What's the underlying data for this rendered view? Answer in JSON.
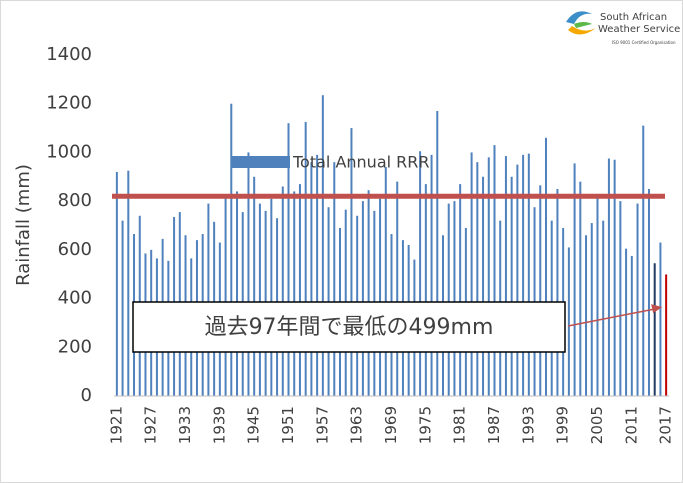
{
  "logo": {
    "line1": "South African",
    "line2": "Weather Service",
    "line3": "ISO 9001 Certified Organisation"
  },
  "chart_data": {
    "type": "bar",
    "y_label": "Rainfall (mm)",
    "categories": [
      "1921",
      null,
      null,
      null,
      null,
      null,
      "1927",
      null,
      null,
      null,
      null,
      null,
      "1933",
      null,
      null,
      null,
      null,
      null,
      "1939",
      null,
      null,
      null,
      null,
      null,
      "1945",
      null,
      null,
      null,
      null,
      null,
      "1951",
      null,
      null,
      null,
      null,
      null,
      "1957",
      null,
      null,
      null,
      null,
      null,
      "1963",
      null,
      null,
      null,
      null,
      null,
      "1969",
      null,
      null,
      null,
      null,
      null,
      "1975",
      null,
      null,
      null,
      null,
      null,
      "1981",
      null,
      null,
      null,
      null,
      null,
      "1987",
      null,
      null,
      null,
      null,
      null,
      "1993",
      null,
      null,
      null,
      null,
      null,
      "1999",
      null,
      null,
      null,
      null,
      null,
      "2005",
      null,
      null,
      null,
      null,
      null,
      "2011",
      null,
      null,
      null,
      null,
      null,
      "2017"
    ],
    "series": [
      {
        "name": "Total Annual RRR",
        "color": "#4f81bd",
        "values": [
          920,
          720,
          925,
          665,
          740,
          585,
          600,
          565,
          645,
          555,
          735,
          755,
          660,
          565,
          640,
          665,
          790,
          715,
          630,
          820,
          1200,
          840,
          755,
          1000,
          900,
          790,
          760,
          810,
          730,
          860,
          1120,
          840,
          870,
          1125,
          960,
          990,
          1235,
          775,
          960,
          690,
          765,
          1100,
          740,
          800,
          845,
          760,
          810,
          940,
          665,
          880,
          640,
          620,
          560,
          1005,
          870,
          990,
          1170,
          660,
          790,
          800,
          870,
          690,
          1000,
          960,
          900,
          980,
          1030,
          720,
          985,
          900,
          950,
          990,
          995,
          775,
          865,
          1060,
          720,
          850,
          690,
          610,
          955,
          880,
          660,
          710,
          815,
          720,
          975,
          970,
          800,
          605,
          575,
          790,
          1110,
          850,
          545,
          630,
          499
        ],
        "colors": [
          "#4f81bd",
          "#4f81bd",
          "#4f81bd",
          "#4f81bd",
          "#4f81bd",
          "#4f81bd",
          "#4f81bd",
          "#4f81bd",
          "#4f81bd",
          "#4f81bd",
          "#4f81bd",
          "#4f81bd",
          "#4f81bd",
          "#4f81bd",
          "#4f81bd",
          "#4f81bd",
          "#4f81bd",
          "#4f81bd",
          "#4f81bd",
          "#4f81bd",
          "#4f81bd",
          "#4f81bd",
          "#4f81bd",
          "#4f81bd",
          "#4f81bd",
          "#4f81bd",
          "#4f81bd",
          "#4f81bd",
          "#4f81bd",
          "#4f81bd",
          "#4f81bd",
          "#4f81bd",
          "#4f81bd",
          "#4f81bd",
          "#4f81bd",
          "#4f81bd",
          "#4f81bd",
          "#4f81bd",
          "#4f81bd",
          "#4f81bd",
          "#4f81bd",
          "#4f81bd",
          "#4f81bd",
          "#4f81bd",
          "#4f81bd",
          "#4f81bd",
          "#4f81bd",
          "#4f81bd",
          "#4f81bd",
          "#4f81bd",
          "#4f81bd",
          "#4f81bd",
          "#4f81bd",
          "#4f81bd",
          "#4f81bd",
          "#4f81bd",
          "#4f81bd",
          "#4f81bd",
          "#4f81bd",
          "#4f81bd",
          "#4f81bd",
          "#4f81bd",
          "#4f81bd",
          "#4f81bd",
          "#4f81bd",
          "#4f81bd",
          "#4f81bd",
          "#4f81bd",
          "#4f81bd",
          "#4f81bd",
          "#4f81bd",
          "#4f81bd",
          "#4f81bd",
          "#4f81bd",
          "#4f81bd",
          "#4f81bd",
          "#4f81bd",
          "#4f81bd",
          "#4f81bd",
          "#4f81bd",
          "#4f81bd",
          "#4f81bd",
          "#4f81bd",
          "#4f81bd",
          "#4f81bd",
          "#4f81bd",
          "#4f81bd",
          "#4f81bd",
          "#4f81bd",
          "#4f81bd",
          "#4f81bd",
          "#4f81bd",
          "#4f81bd",
          "#4f81bd",
          "#1f3864",
          "#4f81bd",
          "#c00000"
        ]
      }
    ],
    "mean_line": {
      "value": 820,
      "color": "#c0504d"
    },
    "annotation": {
      "text": "過去97年間で最低の499mm",
      "target_index": 96,
      "target_value": 365,
      "color": "#c0504d"
    },
    "ylim": [
      0,
      1400
    ],
    "yticks": [
      0,
      200,
      400,
      600,
      800,
      1000,
      1200,
      1400
    ],
    "grid": false
  }
}
